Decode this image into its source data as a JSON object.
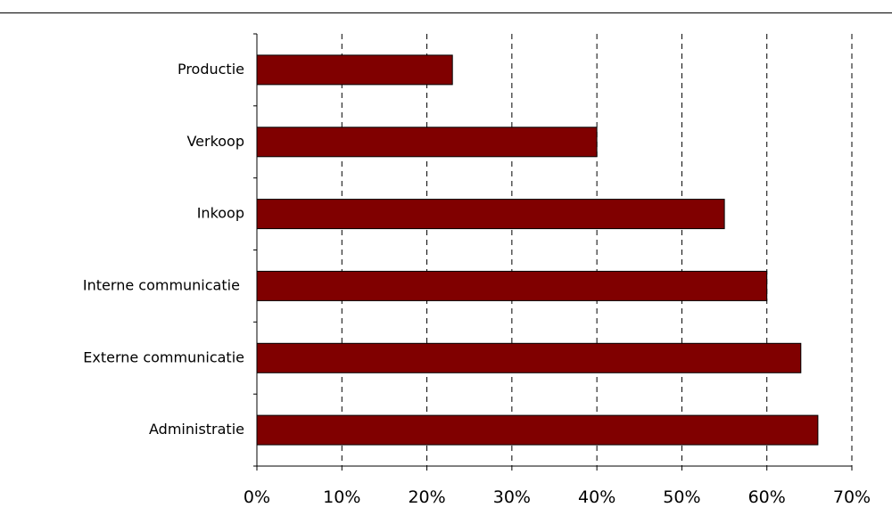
{
  "chart_data": {
    "type": "bar",
    "orientation": "horizontal",
    "categories": [
      "Administratie",
      "Externe communicatie",
      "Interne communicatie ",
      "Inkoop",
      "Verkoop",
      "Productie"
    ],
    "values": [
      66,
      64,
      60,
      55,
      40,
      23
    ],
    "value_unit": "%",
    "xlim": [
      0,
      70
    ],
    "xticks": [
      0,
      10,
      20,
      30,
      40,
      50,
      60,
      70
    ],
    "xtick_labels": [
      "0%",
      "10%",
      "20%",
      "30%",
      "40%",
      "50%",
      "60%",
      "70%"
    ],
    "grid": "vertical dashed",
    "legend": "none",
    "colors": {
      "bar_fill": "#800000",
      "bar_stroke": "#000000",
      "grid": "#000000"
    }
  }
}
